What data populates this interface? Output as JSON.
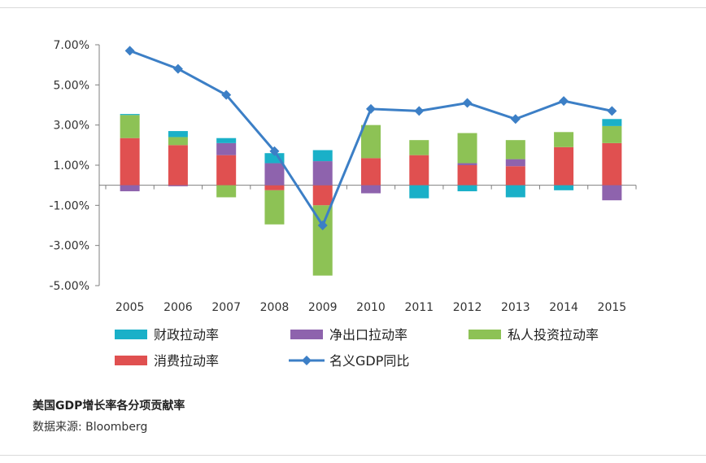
{
  "chart_data": {
    "type": "bar",
    "stacked": true,
    "categories": [
      "2005",
      "2006",
      "2007",
      "2008",
      "2009",
      "2010",
      "2011",
      "2012",
      "2013",
      "2014",
      "2015"
    ],
    "y_tick_labels": [
      "7.00%",
      "5.00%",
      "3.00%",
      "1.00%",
      "-1.00%",
      "-3.00%",
      "-5.00%"
    ],
    "y_ticks": [
      7,
      5,
      3,
      1,
      -1,
      -3,
      -5
    ],
    "ylim": [
      -5,
      7
    ],
    "grid": false,
    "legend_position": "bottom",
    "series": [
      {
        "key": "consumption",
        "name": "消费拉动率",
        "color": "#e05050",
        "kind": "bar",
        "values": [
          2.35,
          2.0,
          1.5,
          -0.25,
          -1.0,
          1.35,
          1.5,
          1.0,
          0.95,
          1.9,
          2.1
        ]
      },
      {
        "key": "net_exports",
        "name": "净出口拉动率",
        "color": "#8e63ad",
        "kind": "bar",
        "values": [
          -0.3,
          -0.05,
          0.6,
          1.1,
          1.2,
          -0.4,
          0.0,
          0.1,
          0.35,
          0.0,
          -0.75
        ]
      },
      {
        "key": "private_investment",
        "name": "私人投资拉动率",
        "color": "#8dc255",
        "kind": "bar",
        "values": [
          1.15,
          0.4,
          -0.6,
          -1.7,
          -3.5,
          1.65,
          0.75,
          1.5,
          0.95,
          0.75,
          0.85
        ]
      },
      {
        "key": "government",
        "name": "财政拉动率",
        "color": "#1ab0c8",
        "kind": "bar",
        "values": [
          0.05,
          0.3,
          0.25,
          0.5,
          0.55,
          0.0,
          -0.65,
          -0.3,
          -0.6,
          -0.25,
          0.35
        ]
      },
      {
        "key": "nominal_gdp",
        "name": "名义GDP同比",
        "color": "#3c7fc6",
        "kind": "line",
        "values": [
          6.7,
          5.8,
          4.5,
          1.7,
          -2.0,
          3.8,
          3.7,
          4.1,
          3.3,
          4.2,
          3.7
        ]
      }
    ]
  },
  "captions": {
    "title": "美国GDP增长率各分项贡献率",
    "source": "数据来源: Bloomberg"
  }
}
